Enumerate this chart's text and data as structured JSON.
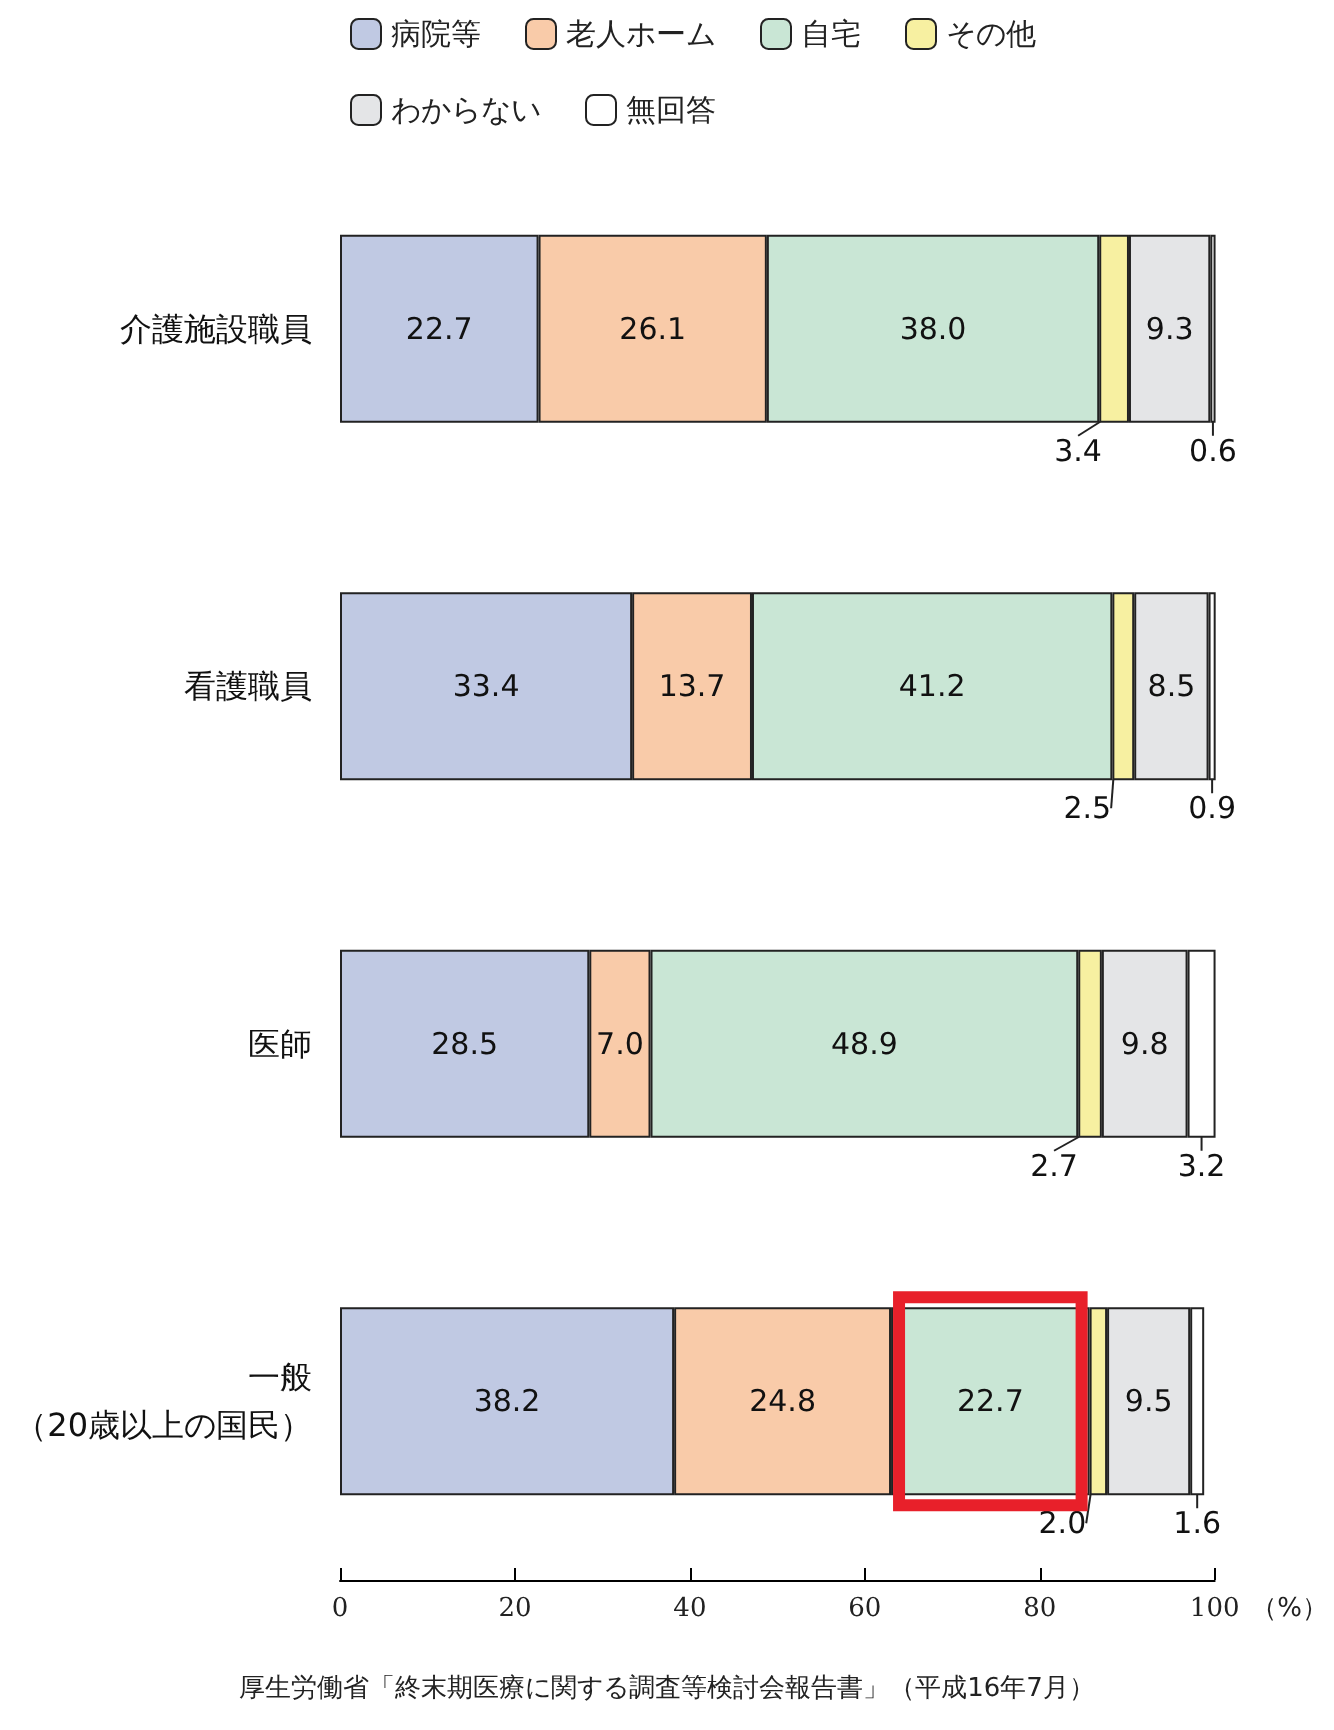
{
  "chart_data": {
    "type": "bar",
    "orientation": "horizontal",
    "stacked": true,
    "categories": [
      "介護施設職員",
      "看護職員",
      "医師",
      "一般（20歳以上の国民）"
    ],
    "series": [
      {
        "name": "病院等",
        "color": "#c0c9e3",
        "values": [
          22.7,
          33.4,
          28.5,
          38.2
        ],
        "value_labels": [
          "22.7",
          "33.4",
          "28.5",
          "38.2"
        ]
      },
      {
        "name": "老人ホーム",
        "color": "#f9cba9",
        "values": [
          26.1,
          13.7,
          7.0,
          24.8
        ],
        "value_labels": [
          "26.1",
          "13.7",
          "7.0",
          "24.8"
        ]
      },
      {
        "name": "自宅",
        "color": "#c9e6d5",
        "values": [
          38.0,
          41.2,
          48.9,
          22.7
        ],
        "value_labels": [
          "38.0",
          "41.2",
          "48.9",
          "22.7"
        ]
      },
      {
        "name": "その他",
        "color": "#f7f0a1",
        "values": [
          3.4,
          2.5,
          2.7,
          2.0
        ],
        "value_labels": [
          "3.4",
          "2.5",
          "2.7",
          "2.0"
        ]
      },
      {
        "name": "わからない",
        "color": "#e4e5e7",
        "values": [
          9.3,
          8.5,
          9.8,
          9.5
        ],
        "value_labels": [
          "9.3",
          "8.5",
          "9.8",
          "9.5"
        ]
      },
      {
        "name": "無回答",
        "color": "#ffffff",
        "values": [
          0.6,
          0.9,
          3.2,
          1.6
        ],
        "value_labels": [
          "0.6",
          "0.9",
          "3.2",
          "1.6"
        ]
      }
    ],
    "xlim": [
      0,
      100
    ],
    "xticks": [
      0,
      20,
      40,
      60,
      80,
      100
    ],
    "xlabel": "（%）",
    "grid": false,
    "legend": "top",
    "annotations": [
      "厚生労働省「終末期医療に関する調査等検討会報告書」（平成16年7月）"
    ]
  }
}
